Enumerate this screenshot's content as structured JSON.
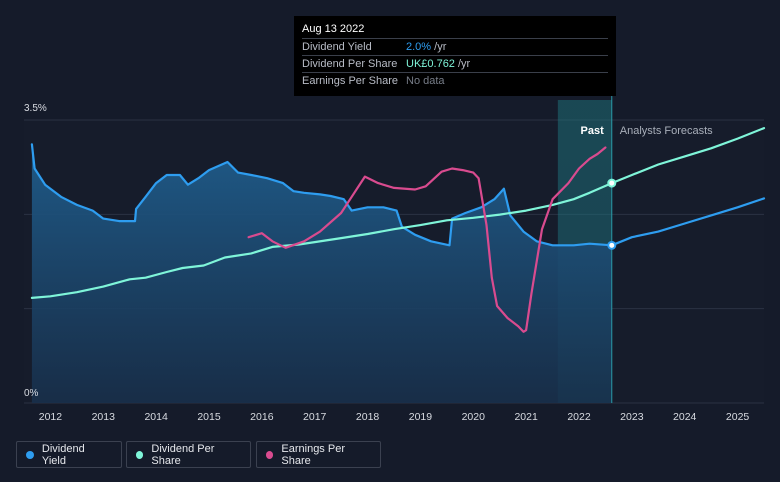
{
  "tooltip": {
    "date": "Aug 13 2022",
    "rows": [
      {
        "label": "Dividend Yield",
        "value": "2.0%",
        "unit": " /yr"
      },
      {
        "label": "Dividend Per Share",
        "value": "UK£0.762",
        "unit": " /yr"
      },
      {
        "label": "Earnings Per Share",
        "value": "No data",
        "unit": ""
      }
    ]
  },
  "chart_data": {
    "type": "line",
    "y_tick_labels": {
      "top": "3.5%",
      "bottom": "0%"
    },
    "ylim": [
      0,
      3.5
    ],
    "xlim": [
      2011.5,
      2025.5
    ],
    "x_ticks": [
      2012,
      2013,
      2014,
      2015,
      2016,
      2017,
      2018,
      2019,
      2020,
      2021,
      2022,
      2023,
      2024,
      2025
    ],
    "past_label": "Past",
    "forecast_label": "Analysts Forecasts",
    "past_region": [
      2021.6,
      2022.62
    ],
    "today": 2022.62,
    "grid": true,
    "legend_position": "bottom-left",
    "series": [
      {
        "name": "Dividend Yield",
        "color": "#2e9df0",
        "points": [
          [
            2011.65,
            3.2
          ],
          [
            2011.7,
            2.9
          ],
          [
            2011.9,
            2.7
          ],
          [
            2012.2,
            2.55
          ],
          [
            2012.5,
            2.45
          ],
          [
            2012.8,
            2.38
          ],
          [
            2013.0,
            2.28
          ],
          [
            2013.3,
            2.25
          ],
          [
            2013.6,
            2.25
          ],
          [
            2013.62,
            2.4
          ],
          [
            2013.8,
            2.55
          ],
          [
            2014.0,
            2.72
          ],
          [
            2014.2,
            2.82
          ],
          [
            2014.45,
            2.82
          ],
          [
            2014.6,
            2.7
          ],
          [
            2014.8,
            2.78
          ],
          [
            2015.0,
            2.88
          ],
          [
            2015.35,
            2.98
          ],
          [
            2015.55,
            2.85
          ],
          [
            2015.8,
            2.82
          ],
          [
            2016.1,
            2.78
          ],
          [
            2016.4,
            2.72
          ],
          [
            2016.6,
            2.62
          ],
          [
            2016.8,
            2.6
          ],
          [
            2017.1,
            2.58
          ],
          [
            2017.3,
            2.56
          ],
          [
            2017.55,
            2.52
          ],
          [
            2017.7,
            2.38
          ],
          [
            2018.0,
            2.42
          ],
          [
            2018.3,
            2.42
          ],
          [
            2018.55,
            2.38
          ],
          [
            2018.65,
            2.18
          ],
          [
            2018.9,
            2.08
          ],
          [
            2019.2,
            2.0
          ],
          [
            2019.55,
            1.95
          ],
          [
            2019.6,
            2.28
          ],
          [
            2019.85,
            2.35
          ],
          [
            2020.15,
            2.42
          ],
          [
            2020.4,
            2.52
          ],
          [
            2020.58,
            2.65
          ],
          [
            2020.7,
            2.32
          ],
          [
            2020.95,
            2.12
          ],
          [
            2021.2,
            2.0
          ],
          [
            2021.5,
            1.95
          ],
          [
            2021.9,
            1.95
          ],
          [
            2022.2,
            1.97
          ],
          [
            2022.62,
            1.95
          ],
          [
            2023.0,
            2.05
          ],
          [
            2023.5,
            2.12
          ],
          [
            2024.0,
            2.22
          ],
          [
            2024.5,
            2.32
          ],
          [
            2025.0,
            2.42
          ],
          [
            2025.5,
            2.53
          ]
        ]
      },
      {
        "name": "Dividend Per Share",
        "color": "#7ff5d9",
        "points": [
          [
            2011.65,
            1.3
          ],
          [
            2012.0,
            1.32
          ],
          [
            2012.5,
            1.37
          ],
          [
            2013.0,
            1.44
          ],
          [
            2013.5,
            1.53
          ],
          [
            2013.8,
            1.55
          ],
          [
            2014.2,
            1.62
          ],
          [
            2014.5,
            1.67
          ],
          [
            2014.9,
            1.7
          ],
          [
            2015.3,
            1.8
          ],
          [
            2015.8,
            1.85
          ],
          [
            2016.2,
            1.93
          ],
          [
            2016.7,
            1.96
          ],
          [
            2017.0,
            1.99
          ],
          [
            2017.5,
            2.04
          ],
          [
            2018.0,
            2.09
          ],
          [
            2018.5,
            2.15
          ],
          [
            2019.0,
            2.2
          ],
          [
            2019.5,
            2.26
          ],
          [
            2020.0,
            2.29
          ],
          [
            2020.5,
            2.33
          ],
          [
            2021.0,
            2.38
          ],
          [
            2021.5,
            2.45
          ],
          [
            2021.9,
            2.52
          ],
          [
            2022.2,
            2.6
          ],
          [
            2022.62,
            2.72
          ],
          [
            2023.0,
            2.82
          ],
          [
            2023.5,
            2.95
          ],
          [
            2024.0,
            3.05
          ],
          [
            2024.5,
            3.15
          ],
          [
            2025.0,
            3.27
          ],
          [
            2025.5,
            3.4
          ]
        ]
      },
      {
        "name": "Earnings Per Share",
        "color": "#d94b8f",
        "points": [
          [
            2015.75,
            2.05
          ],
          [
            2016.0,
            2.1
          ],
          [
            2016.2,
            2.0
          ],
          [
            2016.45,
            1.92
          ],
          [
            2016.8,
            2.0
          ],
          [
            2017.1,
            2.12
          ],
          [
            2017.5,
            2.35
          ],
          [
            2017.7,
            2.55
          ],
          [
            2017.95,
            2.8
          ],
          [
            2018.2,
            2.72
          ],
          [
            2018.5,
            2.66
          ],
          [
            2018.9,
            2.64
          ],
          [
            2019.1,
            2.68
          ],
          [
            2019.4,
            2.86
          ],
          [
            2019.6,
            2.9
          ],
          [
            2019.8,
            2.88
          ],
          [
            2020.0,
            2.85
          ],
          [
            2020.1,
            2.78
          ],
          [
            2020.25,
            2.2
          ],
          [
            2020.35,
            1.55
          ],
          [
            2020.45,
            1.2
          ],
          [
            2020.65,
            1.05
          ],
          [
            2020.85,
            0.95
          ],
          [
            2020.95,
            0.88
          ],
          [
            2021.0,
            0.9
          ],
          [
            2021.1,
            1.35
          ],
          [
            2021.3,
            2.15
          ],
          [
            2021.5,
            2.52
          ],
          [
            2021.8,
            2.72
          ],
          [
            2022.0,
            2.9
          ],
          [
            2022.2,
            3.02
          ],
          [
            2022.35,
            3.08
          ],
          [
            2022.5,
            3.16
          ]
        ]
      }
    ]
  },
  "legend": [
    {
      "label": "Dividend Yield",
      "color": "#2e9df0"
    },
    {
      "label": "Dividend Per Share",
      "color": "#7ff5d9"
    },
    {
      "label": "Earnings Per Share",
      "color": "#d94b8f"
    }
  ]
}
